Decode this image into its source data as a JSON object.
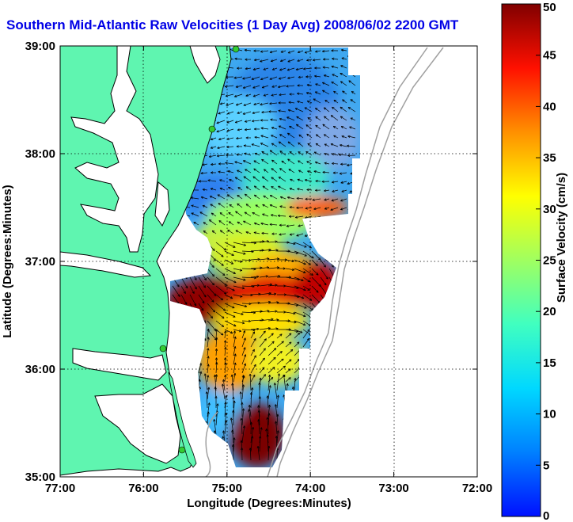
{
  "title": "Southern Mid-Atlantic Raw Velocities (1 Day Avg) 2008/06/02 2200 GMT",
  "x_axis": {
    "label": "Longitude (Degrees:Minutes)",
    "ticks": [
      "77:00",
      "76:00",
      "75:00",
      "74:00",
      "73:00",
      "72:00"
    ],
    "range": [
      -77,
      -72
    ]
  },
  "y_axis": {
    "label": "Latitude (Degrees:Minutes)",
    "ticks": [
      "35:00",
      "36:00",
      "37:00",
      "38:00",
      "39:00"
    ],
    "range": [
      35,
      39
    ]
  },
  "colorbar": {
    "label": "Surface Velocity (cm/s)",
    "ticks": [
      "0",
      "5",
      "10",
      "15",
      "20",
      "25",
      "30",
      "35",
      "40",
      "45",
      "50"
    ],
    "range": [
      0,
      50
    ]
  },
  "colors": {
    "land": "#5ff5b0",
    "title": "#0000e6",
    "isobath": "#a0a0a0",
    "station_marker": "#33cc33",
    "arrow": "#000000"
  },
  "grid": "dotted"
}
